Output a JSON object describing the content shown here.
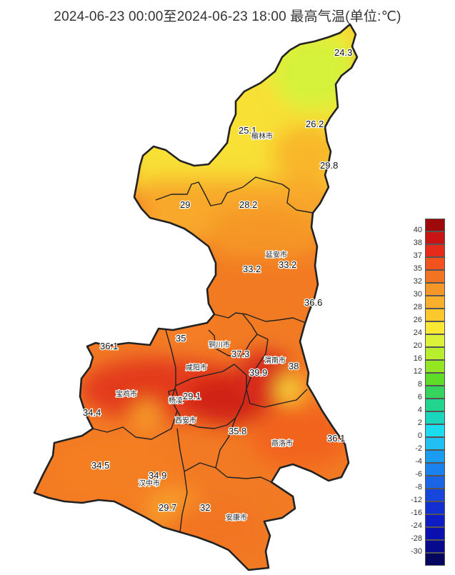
{
  "title": "2024-06-23 00:00至2024-06-23 18:00 最高气温(单位:℃)",
  "map": {
    "region": "陕西省",
    "cities": [
      {
        "name": "榆林市"
      },
      {
        "name": "延安市"
      },
      {
        "name": "铜川市"
      },
      {
        "name": "渭南市"
      },
      {
        "name": "咸阳市"
      },
      {
        "name": "宝鸡市"
      },
      {
        "name": "杨凌"
      },
      {
        "name": "西安市"
      },
      {
        "name": "商洛市"
      },
      {
        "name": "汉中市"
      },
      {
        "name": "安康市"
      }
    ],
    "values": [
      "24.3",
      "25.1",
      "26.2",
      "29.8",
      "29",
      "28.2",
      "33.2",
      "33.2",
      "36.6",
      "35",
      "36.1",
      "37.3",
      "38",
      "39.9",
      "29.1",
      "34.4",
      "35.8",
      "36.1",
      "34.5",
      "34.9",
      "29.7",
      "32"
    ]
  },
  "legend": {
    "items": [
      {
        "label": "40",
        "color": "#9e0a0a"
      },
      {
        "label": "38",
        "color": "#c81414"
      },
      {
        "label": "37",
        "color": "#e62a1a"
      },
      {
        "label": "35",
        "color": "#f2521e"
      },
      {
        "label": "32",
        "color": "#f27422"
      },
      {
        "label": "30",
        "color": "#f59628"
      },
      {
        "label": "28",
        "color": "#f8b02c"
      },
      {
        "label": "26",
        "color": "#fcc82e"
      },
      {
        "label": "24",
        "color": "#fbe835"
      },
      {
        "label": "20",
        "color": "#dcf23a"
      },
      {
        "label": "16",
        "color": "#b8ee2e"
      },
      {
        "label": "12",
        "color": "#94e622"
      },
      {
        "label": "8",
        "color": "#5fdc28"
      },
      {
        "label": "6",
        "color": "#36d45e"
      },
      {
        "label": "4",
        "color": "#22d48e"
      },
      {
        "label": "2",
        "color": "#1ad6bc"
      },
      {
        "label": "0",
        "color": "#1edcf0"
      },
      {
        "label": "-2",
        "color": "#21bff2"
      },
      {
        "label": "-4",
        "color": "#1a9df0"
      },
      {
        "label": "-6",
        "color": "#1a82ec"
      },
      {
        "label": "-8",
        "color": "#1a64e6"
      },
      {
        "label": "-12",
        "color": "#1646dc"
      },
      {
        "label": "-16",
        "color": "#1230d2"
      },
      {
        "label": "-24",
        "color": "#0e1cc4"
      },
      {
        "label": "-28",
        "color": "#0a10b0"
      },
      {
        "label": "-30",
        "color": "#070a8e"
      },
      {
        "label": "",
        "color": "#05065e"
      }
    ]
  }
}
